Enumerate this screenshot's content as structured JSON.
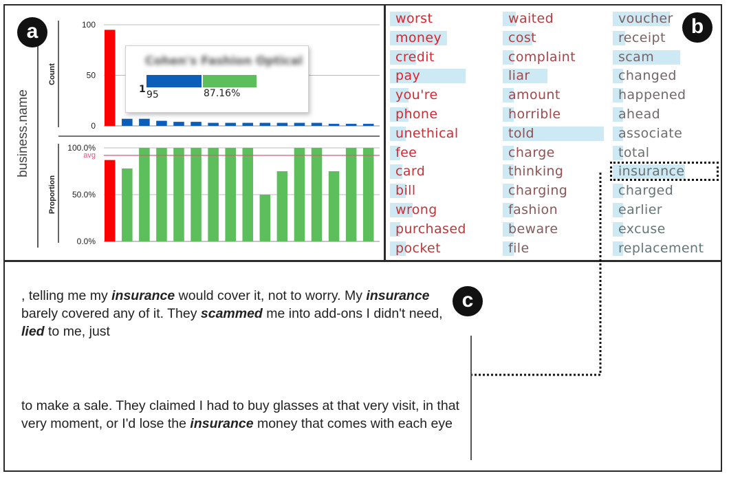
{
  "badges": {
    "a": "a",
    "b": "b",
    "c": "c"
  },
  "panel_a": {
    "group_label": "business.name",
    "tooltip": {
      "title": "Cohen's Fashion Optical",
      "index": "1",
      "count": "95",
      "proportion": "87.16%"
    },
    "chart_data": [
      {
        "type": "bar",
        "ylabel": "Count",
        "ylim": [
          0,
          100
        ],
        "yticks": [
          {
            "value": 0,
            "label": "0"
          },
          {
            "value": 50,
            "label": "50"
          },
          {
            "value": 100,
            "label": "100"
          }
        ],
        "values": [
          95,
          7,
          7,
          5,
          4,
          4,
          3,
          3,
          3,
          3,
          3,
          3,
          3,
          2,
          2,
          2
        ],
        "colors": [
          "#ff0000",
          "#0b5fba",
          "#0b5fba",
          "#0b5fba",
          "#0b5fba",
          "#0b5fba",
          "#0b5fba",
          "#0b5fba",
          "#0b5fba",
          "#0b5fba",
          "#0b5fba",
          "#0b5fba",
          "#0b5fba",
          "#0b5fba",
          "#0b5fba",
          "#0b5fba"
        ]
      },
      {
        "type": "bar",
        "ylabel": "Proportion",
        "ylim": [
          0,
          100
        ],
        "yticks": [
          {
            "value": 0,
            "label": "0.0%"
          },
          {
            "value": 50,
            "label": "50.0%"
          },
          {
            "value": 100,
            "label": "100.0%"
          }
        ],
        "avg": {
          "value": 92,
          "label": "avg",
          "color": "#e8527a"
        },
        "values": [
          87,
          78,
          100,
          100,
          100,
          100,
          100,
          100,
          100,
          50,
          75,
          100,
          100,
          75,
          100,
          100
        ],
        "colors": [
          "#ff0000",
          "#5cbf5c",
          "#5cbf5c",
          "#5cbf5c",
          "#5cbf5c",
          "#5cbf5c",
          "#5cbf5c",
          "#5cbf5c",
          "#5cbf5c",
          "#5cbf5c",
          "#5cbf5c",
          "#5cbf5c",
          "#5cbf5c",
          "#5cbf5c",
          "#5cbf5c",
          "#5cbf5c"
        ]
      }
    ]
  },
  "panel_b": {
    "columns": [
      [
        {
          "text": "worst",
          "color": "#e0202a",
          "score": 0.2
        },
        {
          "text": "money",
          "color": "#e0202a",
          "score": 0.55
        },
        {
          "text": "credit",
          "color": "#d92630",
          "score": 0.25
        },
        {
          "text": "pay",
          "color": "#d92630",
          "score": 0.73
        },
        {
          "text": "you're",
          "color": "#d32a32",
          "score": 0.18
        },
        {
          "text": "phone",
          "color": "#d32a32",
          "score": 0.18
        },
        {
          "text": "unethical",
          "color": "#cf2d35",
          "score": 0.15
        },
        {
          "text": "fee",
          "color": "#cf2d35",
          "score": 0.1
        },
        {
          "text": "card",
          "color": "#c93036",
          "score": 0.12
        },
        {
          "text": "bill",
          "color": "#c93036",
          "score": 0.15
        },
        {
          "text": "wrong",
          "color": "#c33337",
          "score": 0.22
        },
        {
          "text": "purchased",
          "color": "#c03538",
          "score": 0.1
        },
        {
          "text": "pocket",
          "color": "#bd3739",
          "score": 0.15
        }
      ],
      [
        {
          "text": "waited",
          "color": "#b83a3c",
          "score": 0.12
        },
        {
          "text": "cost",
          "color": "#b33d40",
          "score": 0.28
        },
        {
          "text": "complaint",
          "color": "#ad4044",
          "score": 0.1
        },
        {
          "text": "liar",
          "color": "#a84347",
          "score": 0.42
        },
        {
          "text": "amount",
          "color": "#a2464a",
          "score": 0.1
        },
        {
          "text": "horrible",
          "color": "#9d494d",
          "score": 0.1
        },
        {
          "text": "told",
          "color": "#984c4f",
          "score": 0.95
        },
        {
          "text": "charge",
          "color": "#934f52",
          "score": 0.1
        },
        {
          "text": "thinking",
          "color": "#8e5254",
          "score": 0.1
        },
        {
          "text": "charging",
          "color": "#8a5557",
          "score": 0.1
        },
        {
          "text": "fashion",
          "color": "#87585a",
          "score": 0.1
        },
        {
          "text": "beware",
          "color": "#845b5d",
          "score": 0.1
        },
        {
          "text": "file",
          "color": "#805e60",
          "score": 0.1
        }
      ],
      [
        {
          "text": "voucher",
          "color": "#7d6062",
          "score": 0.55
        },
        {
          "text": "receipt",
          "color": "#7a6264",
          "score": 0.12
        },
        {
          "text": "scam",
          "color": "#776466",
          "score": 0.65
        },
        {
          "text": "changed",
          "color": "#746668",
          "score": 0.1
        },
        {
          "text": "happened",
          "color": "#71686a",
          "score": 0.1
        },
        {
          "text": "ahead",
          "color": "#6f6a6c",
          "score": 0.1
        },
        {
          "text": "associate",
          "color": "#6d6c6e",
          "score": 0.1
        },
        {
          "text": "total",
          "color": "#6b6e70",
          "score": 0.1
        },
        {
          "text": "insurance",
          "color": "#697072",
          "score": 0.7
        },
        {
          "text": "charged",
          "color": "#687274",
          "score": 0.1
        },
        {
          "text": "earlier",
          "color": "#667476",
          "score": 0.1
        },
        {
          "text": "excuse",
          "color": "#657678",
          "score": 0.1
        },
        {
          "text": "replacement",
          "color": "#64787a",
          "score": 0.1
        }
      ]
    ]
  },
  "panel_c": {
    "paragraph1": [
      {
        "text": ", telling me my "
      },
      {
        "text": "insurance",
        "em": true
      },
      {
        "text": " would cover it, not to worry. My "
      },
      {
        "text": "insurance",
        "em": true
      },
      {
        "text": " barely covered any of it. They "
      },
      {
        "text": "scammed",
        "em": true
      },
      {
        "text": " me into add-ons I didn't need, "
      },
      {
        "text": "lied",
        "em": true
      },
      {
        "text": " to me, just"
      }
    ],
    "paragraph2": [
      {
        "text": "to make a sale. They claimed I had to buy glasses at that very visit, in that very moment, or I'd lose the "
      },
      {
        "text": "insurance",
        "em": true
      },
      {
        "text": " money that comes with each eye"
      }
    ]
  }
}
